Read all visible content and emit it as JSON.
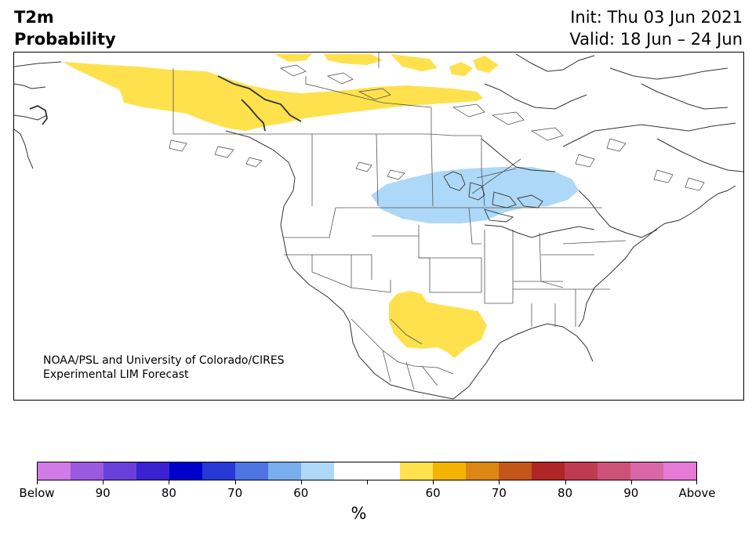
{
  "title": {
    "left_line1": "T2m",
    "left_line2": "Probability",
    "init": "Init: Thu 03 Jun 2021",
    "valid": "Valid: 18 Jun – 24 Jun"
  },
  "credit": {
    "line1": "NOAA/PSL and University of Colorado/CIRES",
    "line2": "Experimental LIM Forecast"
  },
  "colors": {
    "below_light": "#add8f7",
    "above_light": "#ffe14d",
    "coast": "#333333"
  },
  "colorbar": {
    "unit": "%",
    "labels": [
      "Below",
      "90",
      "80",
      "70",
      "60",
      "",
      "60",
      "70",
      "80",
      "90",
      "Above"
    ],
    "colors": [
      "#d27ae8",
      "#9b59e0",
      "#6a3fd9",
      "#3a22d0",
      "#0000cc",
      "#2638d6",
      "#4d74e0",
      "#78aeed",
      "#add8f7",
      "#ffffff",
      "#ffffff",
      "#ffe14d",
      "#f2b400",
      "#db8714",
      "#c4561a",
      "#b02525",
      "#bf3b4f",
      "#cc5278",
      "#d966a8",
      "#e67ad6"
    ]
  }
}
